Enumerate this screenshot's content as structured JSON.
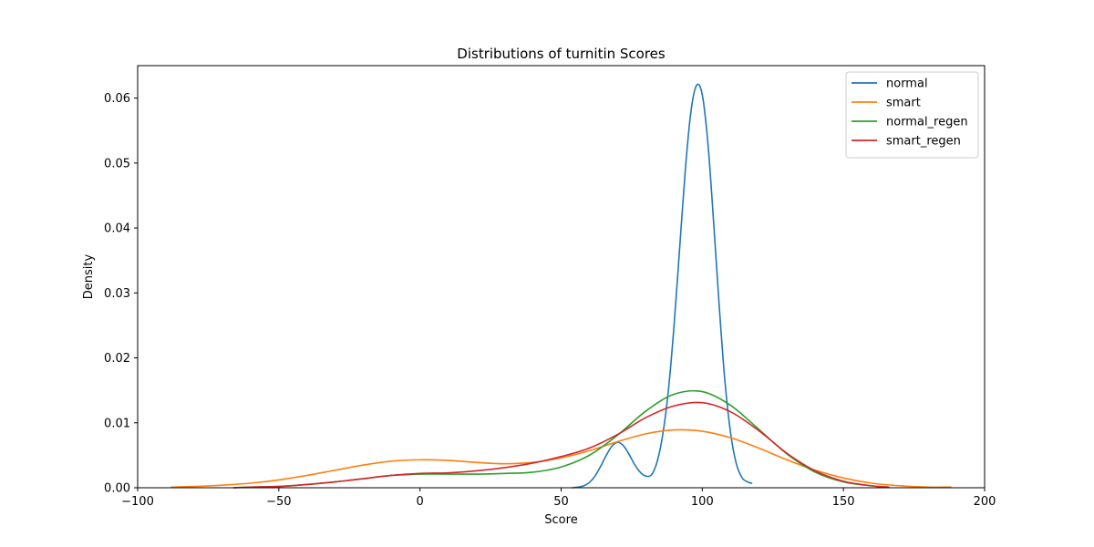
{
  "chart_data": {
    "type": "line",
    "title": "Distributions of turnitin Scores",
    "xlabel": "Score",
    "ylabel": "Density",
    "xlim": [
      -100,
      200
    ],
    "ylim": [
      0,
      0.065
    ],
    "x_ticks": [
      -100,
      -50,
      0,
      50,
      100,
      150,
      200
    ],
    "x_tick_labels": [
      "−100",
      "−50",
      "0",
      "50",
      "100",
      "150",
      "200"
    ],
    "y_ticks": [
      0,
      0.01,
      0.02,
      0.03,
      0.04,
      0.05,
      0.06
    ],
    "y_tick_labels": [
      "0.00",
      "0.01",
      "0.02",
      "0.03",
      "0.04",
      "0.05",
      "0.06"
    ],
    "grid": false,
    "legend_position": "top-right",
    "series": [
      {
        "name": "normal",
        "color": "#1f77b4",
        "x": [
          54,
          56,
          58,
          60,
          62,
          64,
          66,
          68,
          70,
          72,
          74,
          76,
          78,
          80,
          82,
          84,
          86,
          88,
          90,
          92,
          94,
          96,
          98,
          100,
          102,
          104,
          106,
          108,
          110,
          112,
          114,
          116,
          117.5
        ],
        "y": [
          0.0,
          0.0001,
          0.0003,
          0.0008,
          0.0018,
          0.0033,
          0.005,
          0.0064,
          0.007,
          0.0065,
          0.0052,
          0.0036,
          0.0024,
          0.0018,
          0.002,
          0.004,
          0.0082,
          0.015,
          0.025,
          0.037,
          0.049,
          0.058,
          0.062,
          0.0605,
          0.053,
          0.041,
          0.028,
          0.0165,
          0.0085,
          0.0038,
          0.0016,
          0.0009,
          0.0007
        ]
      },
      {
        "name": "smart",
        "color": "#ff7f0e",
        "x": [
          -88,
          -80,
          -70,
          -60,
          -50,
          -40,
          -30,
          -20,
          -10,
          0,
          10,
          20,
          30,
          40,
          50,
          60,
          70,
          80,
          90,
          100,
          110,
          120,
          130,
          140,
          150,
          160,
          170,
          180,
          188
        ],
        "y": [
          0.0001,
          0.0002,
          0.0004,
          0.0007,
          0.0012,
          0.0019,
          0.0027,
          0.0035,
          0.0041,
          0.0043,
          0.0042,
          0.0039,
          0.0037,
          0.0039,
          0.0046,
          0.0057,
          0.0071,
          0.0083,
          0.0089,
          0.0087,
          0.0077,
          0.0061,
          0.0043,
          0.0027,
          0.0015,
          0.0007,
          0.0003,
          0.0001,
          0.0001
        ]
      },
      {
        "name": "normal_regen",
        "color": "#2ca02c",
        "x": [
          -66,
          -60,
          -50,
          -40,
          -30,
          -20,
          -10,
          0,
          10,
          20,
          30,
          40,
          50,
          60,
          70,
          80,
          90,
          100,
          110,
          120,
          130,
          140,
          150,
          160,
          166
        ],
        "y": [
          0.0,
          0.0001,
          0.0002,
          0.0005,
          0.0009,
          0.0014,
          0.0019,
          0.0021,
          0.0021,
          0.0021,
          0.0022,
          0.0024,
          0.0032,
          0.005,
          0.0081,
          0.0118,
          0.0144,
          0.0148,
          0.0127,
          0.009,
          0.0052,
          0.0024,
          0.0009,
          0.0003,
          0.0001
        ]
      },
      {
        "name": "smart_regen",
        "color": "#d62728",
        "x": [
          -66,
          -60,
          -50,
          -40,
          -30,
          -20,
          -10,
          0,
          10,
          20,
          30,
          40,
          50,
          60,
          70,
          80,
          90,
          100,
          110,
          120,
          130,
          140,
          150,
          160,
          166
        ],
        "y": [
          0.0,
          0.0001,
          0.0002,
          0.0005,
          0.0009,
          0.0014,
          0.0019,
          0.0022,
          0.0023,
          0.0026,
          0.0031,
          0.0038,
          0.0048,
          0.0061,
          0.0082,
          0.0108,
          0.0126,
          0.0131,
          0.0117,
          0.0088,
          0.0053,
          0.0026,
          0.001,
          0.0003,
          0.0001
        ]
      }
    ]
  }
}
